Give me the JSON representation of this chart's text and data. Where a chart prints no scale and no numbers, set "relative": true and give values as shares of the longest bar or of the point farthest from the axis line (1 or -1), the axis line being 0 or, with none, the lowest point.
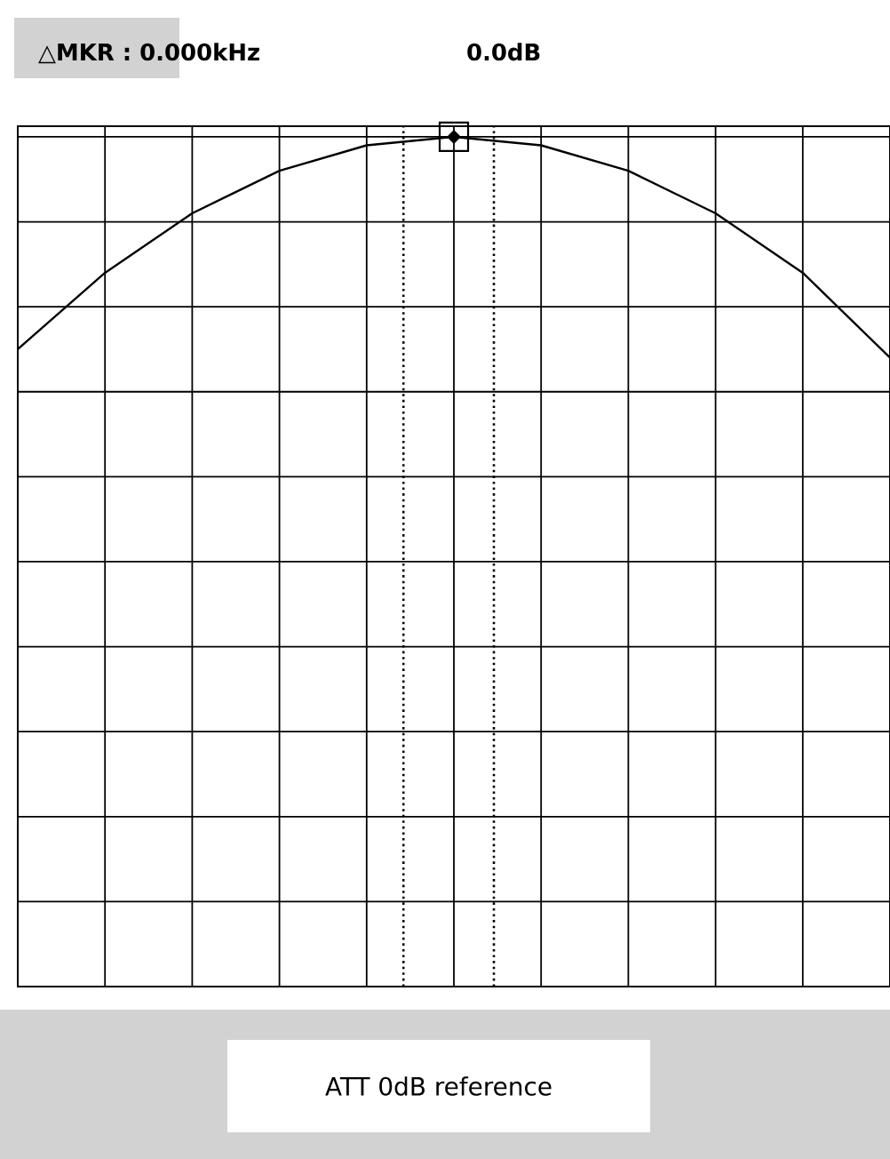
{
  "chart_data": {
    "type": "line",
    "title": "△MKR : 0.000kHz",
    "subtitle": "0.0dB",
    "annotations": [
      "ATT 0dB reference"
    ],
    "categories": [
      null,
      null,
      null,
      null,
      null,
      null,
      null,
      null,
      null,
      null,
      null
    ],
    "relative": true,
    "grid": true,
    "series": [
      {
        "color": "#000000",
        "values": [
          0.75,
          0.84,
          0.91,
          0.96,
          0.99,
          1,
          0.99,
          0.96,
          0.91,
          0.84,
          0.74
        ]
      }
    ]
  }
}
